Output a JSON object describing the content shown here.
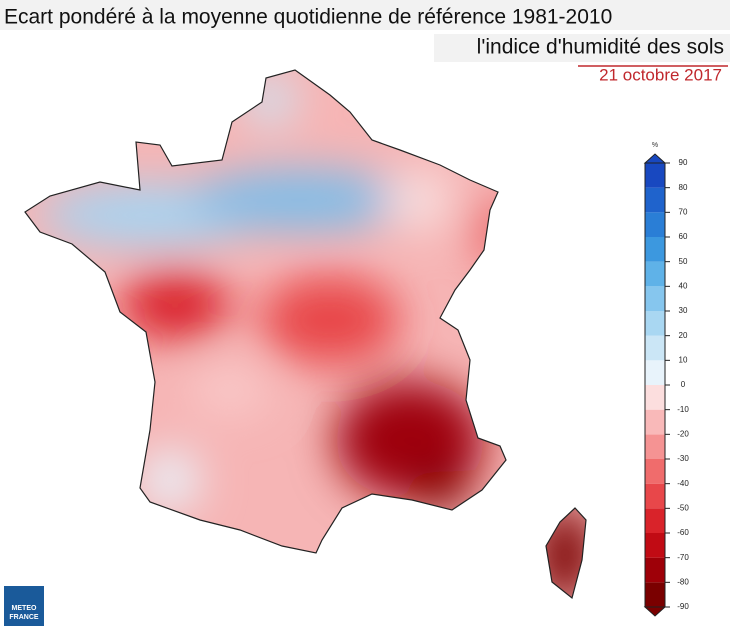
{
  "header": {
    "title": "Ecart pondéré à la moyenne quotidienne de référence 1981-2010",
    "subtitle": "l'indice d'humidité des sols",
    "date": "21 octobre 2017"
  },
  "colorbar": {
    "unit": "%",
    "lim": [
      -90,
      90
    ],
    "ticks": [
      90,
      80,
      70,
      60,
      50,
      40,
      30,
      20,
      10,
      0,
      -10,
      -20,
      -30,
      -40,
      -50,
      -60,
      -70,
      -80,
      -90
    ],
    "colors": [
      "#7a0000",
      "#9e0008",
      "#c10b14",
      "#d9232a",
      "#e8474a",
      "#f06c6c",
      "#f59393",
      "#f9b9b9",
      "#fcdede",
      "#e8f3fb",
      "#cbe6f6",
      "#a9d7f2",
      "#86c6ee",
      "#5fb2e8",
      "#3c98df",
      "#2a7ed6",
      "#1f63cc",
      "#1848c0"
    ]
  },
  "logo": {
    "line1": "METEO",
    "line2": "FRANCE"
  }
}
